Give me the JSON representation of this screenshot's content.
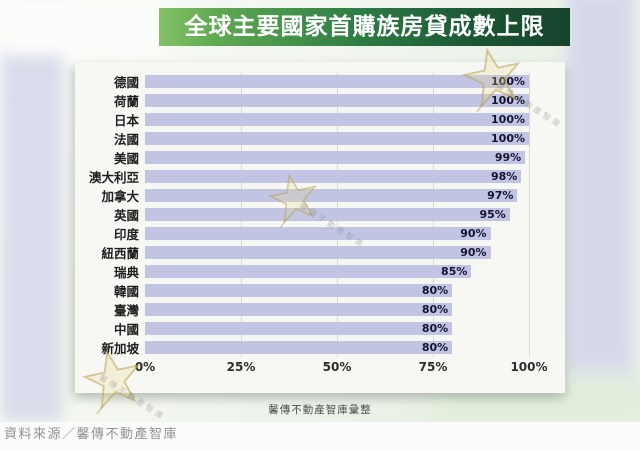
{
  "banner": {
    "title": "全球主要國家首購族房貸成數上限"
  },
  "chart_data": {
    "type": "bar",
    "orientation": "horizontal",
    "title": "全球主要國家首購族房貸成數上限",
    "categories": [
      "德國",
      "荷蘭",
      "日本",
      "法國",
      "美國",
      "澳大利亞",
      "加拿大",
      "英國",
      "印度",
      "紐西蘭",
      "瑞典",
      "韓國",
      "臺灣",
      "中國",
      "新加坡"
    ],
    "values": [
      100,
      100,
      100,
      100,
      99,
      98,
      97,
      95,
      90,
      90,
      85,
      80,
      80,
      80,
      80
    ],
    "value_suffix": "%",
    "x_ticks": [
      {
        "label": "0%",
        "value": 0
      },
      {
        "label": "25%",
        "value": 25
      },
      {
        "label": "50%",
        "value": 50
      },
      {
        "label": "75%",
        "value": 75
      },
      {
        "label": "100%",
        "value": 100
      }
    ],
    "xlim": [
      0,
      100
    ],
    "gridlines_at": [
      25,
      50,
      75,
      100
    ],
    "legend": "none",
    "bar_color": "#c1c5e3"
  },
  "caption": "馨傳不動產智庫彙整",
  "source_bar": {
    "text": "資料來源／馨傳不動產智庫"
  },
  "watermark": {
    "brand_text": "馨傳不動產智庫",
    "star_icon_color": "#c2a84f"
  },
  "colors": {
    "banner_gradient_start": "#85c166",
    "banner_gradient_mid": "#2e7d45",
    "banner_gradient_end": "#15432a",
    "bar": "#c1c5e3",
    "value_label": "#14142e",
    "panel_bg": "#f7f8f4",
    "bg_lavender_band": "#d7daec",
    "source_text": "#8f9398"
  }
}
